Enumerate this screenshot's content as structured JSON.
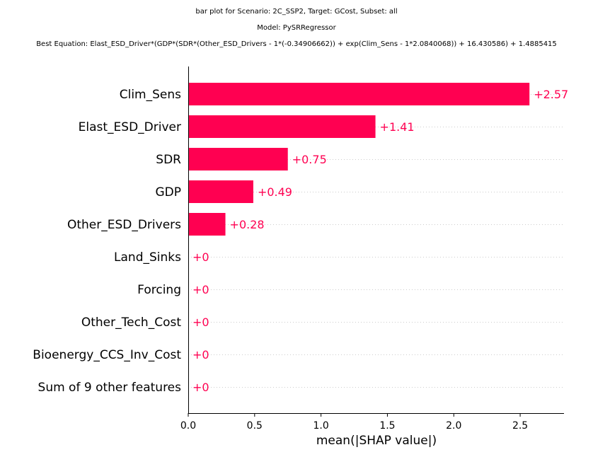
{
  "chart_data": {
    "type": "bar",
    "orientation": "horizontal",
    "title_lines": [
      "bar plot for Scenario: 2C_SSP2, Target: GCost, Subset: all",
      "Model: PySRRegressor",
      "Best Equation: Elast_ESD_Driver*(GDP*(SDR*(Other_ESD_Drivers - 1*(-0.34906662)) + exp(Clim_Sens - 1*2.0840068)) + 16.430586) + 1.4885415"
    ],
    "categories": [
      "Clim_Sens",
      "Elast_ESD_Driver",
      "SDR",
      "GDP",
      "Other_ESD_Drivers",
      "Land_Sinks",
      "Forcing",
      "Other_Tech_Cost",
      "Bioenergy_CCS_Inv_Cost",
      "Sum of 9 other features"
    ],
    "values": [
      2.57,
      1.41,
      0.75,
      0.49,
      0.28,
      0,
      0,
      0,
      0,
      0
    ],
    "value_labels": [
      "+2.57",
      "+1.41",
      "+0.75",
      "+0.49",
      "+0.28",
      "+0",
      "+0",
      "+0",
      "+0",
      "+0"
    ],
    "xlabel": "mean(|SHAP value|)",
    "ylabel": "",
    "xlim": [
      0,
      2.83
    ],
    "xticks": [
      0.0,
      0.5,
      1.0,
      1.5,
      2.0,
      2.5
    ],
    "xtick_labels": [
      "0.0",
      "0.5",
      "1.0",
      "1.5",
      "2.0",
      "2.5"
    ],
    "grid": "dotted horizontal row guides",
    "colors": {
      "bar": "#ff0051",
      "value_label": "#ff0051",
      "text": "#000000",
      "axis": "#000000",
      "gridline": "#cccccc"
    }
  }
}
